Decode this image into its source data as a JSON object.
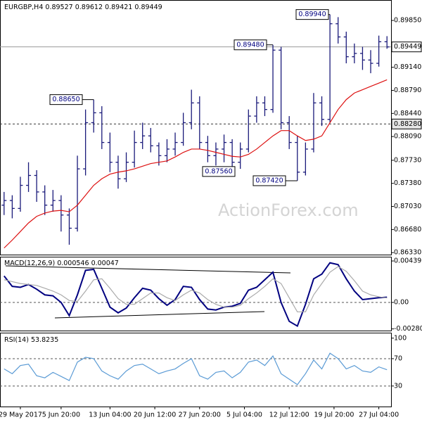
{
  "chart_data": [
    {
      "type": "ohlc",
      "title": "EURGBP,H4",
      "watermark": "ActionForex.com",
      "open": [
        0.8705,
        0.8712,
        0.87,
        0.8735,
        0.875,
        0.8725,
        0.8705,
        0.8712,
        0.869,
        0.867,
        0.876,
        0.883,
        0.8845,
        0.88,
        0.877,
        0.8745,
        0.877,
        0.88,
        0.881,
        0.8795,
        0.878,
        0.879,
        0.88,
        0.883,
        0.886,
        0.88,
        0.878,
        0.879,
        0.88,
        0.877,
        0.879,
        0.884,
        0.886,
        0.885,
        0.894,
        0.883,
        0.88,
        0.8755,
        0.879,
        0.886,
        0.8835,
        0.898,
        0.896,
        0.893,
        0.8935,
        0.8925,
        0.892,
        0.89527
      ],
      "high": [
        0.8725,
        0.872,
        0.8748,
        0.877,
        0.8758,
        0.8735,
        0.8728,
        0.872,
        0.87,
        0.878,
        0.885,
        0.8865,
        0.8855,
        0.8815,
        0.878,
        0.8785,
        0.8818,
        0.883,
        0.8822,
        0.88,
        0.8805,
        0.8815,
        0.8845,
        0.888,
        0.887,
        0.881,
        0.88,
        0.8812,
        0.8805,
        0.88,
        0.885,
        0.887,
        0.887,
        0.8948,
        0.8945,
        0.884,
        0.881,
        0.88,
        0.8875,
        0.887,
        0.8994,
        0.899,
        0.8968,
        0.895,
        0.8945,
        0.894,
        0.8962,
        0.89612
      ],
      "low": [
        0.869,
        0.8685,
        0.8695,
        0.8725,
        0.871,
        0.869,
        0.8695,
        0.8665,
        0.8645,
        0.8665,
        0.875,
        0.8815,
        0.879,
        0.8755,
        0.873,
        0.874,
        0.8762,
        0.879,
        0.8785,
        0.8765,
        0.877,
        0.878,
        0.8795,
        0.882,
        0.879,
        0.877,
        0.8765,
        0.877,
        0.8756,
        0.876,
        0.8785,
        0.883,
        0.884,
        0.8845,
        0.882,
        0.879,
        0.8742,
        0.875,
        0.8785,
        0.8825,
        0.883,
        0.895,
        0.892,
        0.892,
        0.891,
        0.8905,
        0.8915,
        0.89421
      ],
      "close": [
        0.8712,
        0.87,
        0.8735,
        0.875,
        0.8725,
        0.8705,
        0.8712,
        0.869,
        0.867,
        0.876,
        0.883,
        0.8845,
        0.88,
        0.877,
        0.8745,
        0.877,
        0.88,
        0.881,
        0.8795,
        0.878,
        0.879,
        0.88,
        0.883,
        0.886,
        0.88,
        0.878,
        0.879,
        0.88,
        0.877,
        0.879,
        0.884,
        0.886,
        0.885,
        0.894,
        0.883,
        0.88,
        0.8755,
        0.879,
        0.886,
        0.8835,
        0.898,
        0.896,
        0.893,
        0.8935,
        0.8925,
        0.892,
        0.89527,
        0.89449
      ],
      "color": "#1a1a7a",
      "series": [
        {
          "color": "#dd1111",
          "values": [
            0.864,
            0.8652,
            0.8665,
            0.8678,
            0.8688,
            0.8693,
            0.8696,
            0.8697,
            0.8695,
            0.8705,
            0.872,
            0.8735,
            0.8745,
            0.8752,
            0.8755,
            0.8757,
            0.876,
            0.8764,
            0.8768,
            0.877,
            0.8772,
            0.8778,
            0.8785,
            0.879,
            0.879,
            0.8788,
            0.8785,
            0.8782,
            0.8779,
            0.8778,
            0.8782,
            0.879,
            0.88,
            0.881,
            0.8818,
            0.8818,
            0.881,
            0.8803,
            0.8805,
            0.881,
            0.883,
            0.885,
            0.8865,
            0.8875,
            0.888,
            0.8885,
            0.889,
            0.8895
          ]
        }
      ],
      "xlim": [
        -0.5,
        47.5
      ],
      "ylim": [
        0.863,
        0.9016
      ],
      "yticks": [
        {
          "value": 0.8985,
          "label": "0.89850"
        },
        {
          "value": 0.8914,
          "label": "0.89140"
        },
        {
          "value": 0.8879,
          "label": "0.88790"
        },
        {
          "value": 0.8844,
          "label": "0.88440"
        },
        {
          "value": 0.8809,
          "label": "0.88090"
        },
        {
          "value": 0.8773,
          "label": "0.87730"
        },
        {
          "value": 0.8738,
          "label": "0.87380"
        },
        {
          "value": 0.8703,
          "label": "0.87030"
        },
        {
          "value": 0.8668,
          "label": "0.86680"
        },
        {
          "value": 0.8633,
          "label": "0.86330"
        }
      ],
      "price_marks": [
        {
          "value": 0.89449,
          "label": "0.89449"
        },
        {
          "value": 0.8828,
          "label": "0.88280"
        }
      ],
      "annotations": [
        {
          "value": 0.8865,
          "label": "0.88650"
        },
        {
          "value": 0.8756,
          "label": "0.87560"
        },
        {
          "value": 0.8742,
          "label": "0.87420"
        },
        {
          "value": 0.8948,
          "label": "0.89480"
        },
        {
          "value": 0.8994,
          "label": "0.89940"
        }
      ]
    },
    {
      "type": "line",
      "title": "MACD(12,26,9)",
      "series": [
        {
          "color": "#000080",
          "values": [
            0.0028,
            0.0017,
            0.0016,
            0.0019,
            0.0014,
            0.0008,
            0.0007,
            0.0,
            -0.0014,
            0.0008,
            0.0034,
            0.0035,
            0.0015,
            -0.0005,
            -0.0011,
            -0.0006,
            0.0005,
            0.0015,
            0.0013,
            0.0004,
            -0.0003,
            0.0003,
            0.0017,
            0.0016,
            0.0003,
            -0.0007,
            -0.0008,
            -0.0005,
            -0.0004,
            -0.0001,
            0.0013,
            0.0016,
            0.0024,
            0.0032,
            0.0,
            -0.002,
            -0.0025,
            -0.0002,
            0.0025,
            0.003,
            0.0042,
            0.004,
            0.0025,
            0.0012,
            0.0003,
            0.0004,
            0.0005,
            0.000546
          ]
        },
        {
          "color": "#aaaaaa",
          "values": [
            0.0024,
            0.0022,
            0.002,
            0.0019,
            0.0018,
            0.0015,
            0.0012,
            0.0008,
            0.0002,
            0.0001,
            0.0012,
            0.0024,
            0.0025,
            0.0015,
            0.0004,
            -0.0002,
            -0.0002,
            0.0004,
            0.001,
            0.001,
            0.0005,
            0.0002,
            0.0008,
            0.0013,
            0.001,
            0.0003,
            -0.0002,
            -0.0005,
            -0.0005,
            -0.0003,
            0.0004,
            0.001,
            0.0017,
            0.0025,
            0.002,
            0.0005,
            -0.001,
            -0.001,
            0.0008,
            0.002,
            0.0032,
            0.0038,
            0.0033,
            0.0023,
            0.0012,
            0.0008,
            0.0006,
            0.00047
          ]
        }
      ],
      "xlim": [
        -0.5,
        47.5
      ],
      "ylim": [
        -0.00298,
        0.00484
      ],
      "yticks": [
        0.00439,
        {
          "value": 0,
          "label": "0.00"
        },
        -0.002805
      ],
      "reference_lines": [
        0
      ]
    },
    {
      "type": "line",
      "title": "RSI(14)",
      "series": [
        {
          "color": "#5b9bd5",
          "values": [
            55,
            48,
            60,
            62,
            45,
            42,
            50,
            44,
            38,
            65,
            72,
            70,
            52,
            45,
            40,
            52,
            60,
            62,
            55,
            48,
            52,
            55,
            63,
            70,
            45,
            40,
            50,
            52,
            42,
            50,
            65,
            68,
            60,
            74,
            48,
            40,
            32,
            48,
            68,
            55,
            78,
            70,
            55,
            60,
            52,
            50,
            58,
            53.8235
          ]
        }
      ],
      "xlim": [
        -0.5,
        47.5
      ],
      "ylim": [
        0,
        108
      ],
      "yticks": [
        100,
        70,
        30
      ],
      "reference_lines": [
        70,
        30
      ],
      "xticks": [
        {
          "value": 2,
          "label": "29 May 2017"
        },
        {
          "value": 7,
          "label": "5 Jun 20:00"
        },
        {
          "value": 13,
          "label": "13 Jun 04:00"
        },
        {
          "value": 18.5,
          "label": "20 Jun 12:00"
        },
        {
          "value": 24,
          "label": "27 Jun 20:00"
        },
        {
          "value": 29.5,
          "label": "5 Jul 04:00"
        },
        {
          "value": 35,
          "label": "12 Jul 12:00"
        },
        {
          "value": 40.5,
          "label": "19 Jul 20:00"
        },
        {
          "value": 46,
          "label": "27 Jul 04:00"
        }
      ]
    }
  ]
}
